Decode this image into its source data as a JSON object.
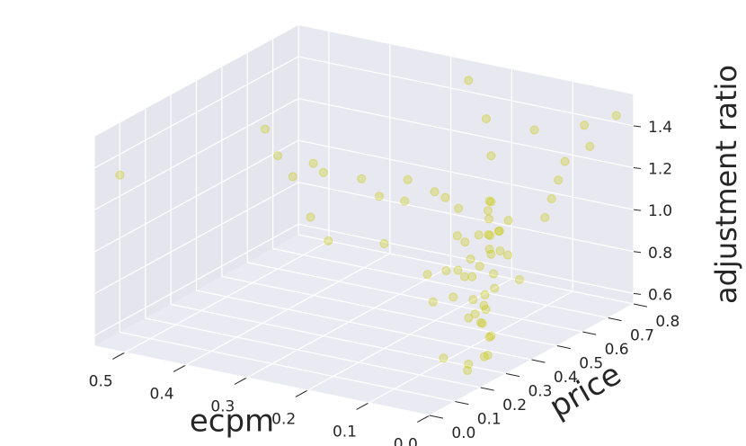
{
  "chart_data": {
    "type": "scatter3d",
    "x_label": "ecpm",
    "y_label": "price",
    "z_label": "adjustment ratio",
    "color": "#c8c800",
    "xlim": [
      0,
      0.55
    ],
    "ylim": [
      0,
      0.8
    ],
    "zlim": [
      0.55,
      1.55
    ],
    "xticks": [
      {
        "value": 0,
        "label": "0.0"
      },
      0.1,
      0.2,
      0.3,
      0.4,
      0.5
    ],
    "yticks": [
      {
        "value": 0,
        "label": "0.0"
      },
      0.1,
      0.2,
      0.3,
      0.4,
      0.5,
      0.6,
      0.7,
      0.8
    ],
    "zticks": [
      0.6,
      0.8,
      {
        "value": 1,
        "label": "1.0"
      },
      1.2,
      1.4
    ],
    "grid": true,
    "x": [
      0.05,
      0.06,
      0.04,
      0.07,
      0.05,
      0.06,
      0.05,
      0.04,
      0.06,
      0.05,
      0.07,
      0.05,
      0.06,
      0.04,
      0.05,
      0.03,
      0.04,
      0.08,
      0.09,
      0.1,
      0.08,
      0.12,
      0.15,
      0.18,
      0.2,
      0.22,
      0.25,
      0.3,
      0.35,
      0.4,
      0.45,
      0.5,
      0.55,
      0.02,
      0.03,
      0.04,
      0.05,
      0.03,
      0.06,
      0.02,
      0.1,
      0.08,
      0.09,
      0.07,
      0.1,
      0.11,
      0.06,
      0.05,
      0.03,
      0.02,
      0.12,
      0.15,
      0.2,
      0.25,
      0.3,
      0.35,
      0.15,
      0.2,
      0.25,
      0.02,
      0.03,
      0.04,
      0.06,
      0.07,
      0.05,
      0.04,
      0.08,
      0.06,
      0.05,
      0.07
    ],
    "y": [
      0.35,
      0.38,
      0.33,
      0.4,
      0.36,
      0.34,
      0.37,
      0.35,
      0.36,
      0.34,
      0.38,
      0.32,
      0.35,
      0.33,
      0.36,
      0.3,
      0.31,
      0.42,
      0.45,
      0.48,
      0.3,
      0.4,
      0.42,
      0.45,
      0.38,
      0.44,
      0.4,
      0.45,
      0.42,
      0.5,
      0.48,
      0.55,
      0.1,
      0.5,
      0.55,
      0.6,
      0.65,
      0.7,
      0.75,
      0.78,
      0.65,
      0.5,
      0.28,
      0.26,
      0.35,
      0.4,
      0.45,
      0.28,
      0.25,
      0.4,
      0.3,
      0.35,
      0.3,
      0.2,
      0.25,
      0.3,
      0.6,
      0.7,
      0.75,
      0.2,
      0.22,
      0.15,
      0.42,
      0.36,
      0.39,
      0.37,
      0.33,
      0.31,
      0.29,
      0.32
    ],
    "z": [
      1.15,
      1.12,
      1.1,
      1.18,
      1.05,
      1.0,
      0.95,
      0.9,
      0.85,
      0.8,
      0.78,
      0.75,
      0.72,
      0.68,
      0.66,
      0.62,
      0.6,
      1.2,
      1.22,
      1.19,
      1.16,
      1.2,
      1.22,
      1.21,
      1.2,
      1.25,
      1.18,
      1.2,
      1.22,
      1.18,
      1.2,
      1.25,
      1.3,
      1.15,
      1.2,
      1.25,
      1.3,
      1.35,
      1.4,
      1.45,
      1.42,
      1.1,
      1.0,
      0.9,
      0.95,
      0.88,
      0.98,
      1.08,
      0.85,
      0.92,
      0.82,
      0.9,
      1.05,
      1.1,
      1.15,
      1.28,
      1.3,
      1.38,
      1.5,
      0.65,
      0.6,
      0.7,
      1.02,
      1.13,
      1.14,
      1.16,
      1.11,
      0.97,
      0.88,
      0.76
    ]
  }
}
